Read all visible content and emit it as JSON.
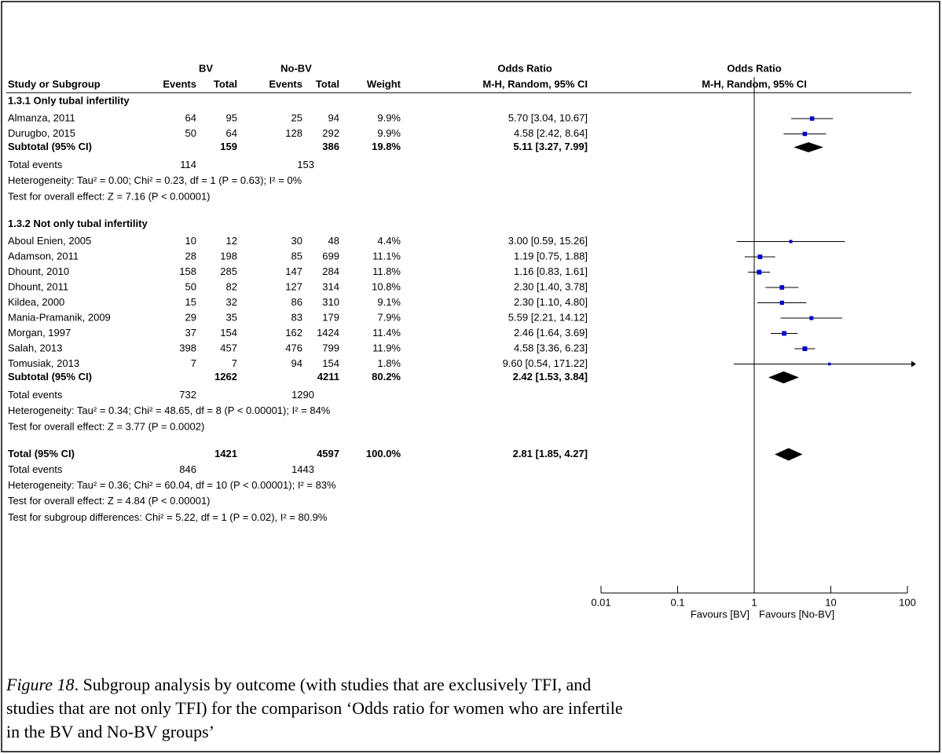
{
  "chart_data": {
    "type": "forest",
    "group_headers": {
      "bv": "BV",
      "nobv": "No-BV",
      "or_table": "Odds Ratio",
      "or_plot": "Odds Ratio"
    },
    "columns": [
      "Study or Subgroup",
      "Events",
      "Total",
      "Events",
      "Total",
      "Weight",
      "M-H, Random, 95% CI"
    ],
    "plot_header": "M-H, Random, 95% CI",
    "color": "#0000cc",
    "subgroups": [
      {
        "title": "1.3.1 Only tubal infertility",
        "studies": [
          {
            "name": "Almanza, 2011",
            "bv_events": 64,
            "bv_total": 95,
            "nobv_events": 25,
            "nobv_total": 94,
            "weight": 9.9,
            "weight_label": "9.9%",
            "or": 5.7,
            "ci": [
              3.04,
              10.67
            ],
            "ci_label": "5.70 [3.04, 10.67]"
          },
          {
            "name": "Durugbo, 2015",
            "bv_events": 50,
            "bv_total": 64,
            "nobv_events": 128,
            "nobv_total": 292,
            "weight": 9.9,
            "weight_label": "9.9%",
            "or": 4.58,
            "ci": [
              2.42,
              8.64
            ],
            "ci_label": "4.58 [2.42, 8.64]"
          }
        ],
        "subtotal": {
          "name": "Subtotal (95% CI)",
          "bv_total": 159,
          "nobv_total": 386,
          "weight": 19.8,
          "weight_label": "19.8%",
          "or": 5.11,
          "ci": [
            3.27,
            7.99
          ],
          "ci_label": "5.11 [3.27, 7.99]"
        },
        "total_events": {
          "name": "Total events",
          "bv": 114,
          "nobv": 153
        },
        "heterogeneity": "Heterogeneity: Tau² = 0.00; Chi² = 0.23, df = 1 (P = 0.63); I² = 0%",
        "overall": "Test for overall effect: Z = 7.16 (P < 0.00001)"
      },
      {
        "title": "1.3.2 Not only tubal infertility",
        "studies": [
          {
            "name": "Aboul Enien, 2005",
            "bv_events": 10,
            "bv_total": 12,
            "nobv_events": 30,
            "nobv_total": 48,
            "weight": 4.4,
            "weight_label": "4.4%",
            "or": 3,
            "ci": [
              0.59,
              15.26
            ],
            "ci_label": "3.00 [0.59, 15.26]"
          },
          {
            "name": "Adamson, 2011",
            "bv_events": 28,
            "bv_total": 198,
            "nobv_events": 85,
            "nobv_total": 699,
            "weight": 11.1,
            "weight_label": "11.1%",
            "or": 1.19,
            "ci": [
              0.75,
              1.88
            ],
            "ci_label": "1.19 [0.75, 1.88]"
          },
          {
            "name": "Dhount, 2010",
            "bv_events": 158,
            "bv_total": 285,
            "nobv_events": 147,
            "nobv_total": 284,
            "weight": 11.8,
            "weight_label": "11.8%",
            "or": 1.16,
            "ci": [
              0.83,
              1.61
            ],
            "ci_label": "1.16 [0.83, 1.61]"
          },
          {
            "name": "Dhount, 2011",
            "bv_events": 50,
            "bv_total": 82,
            "nobv_events": 127,
            "nobv_total": 314,
            "weight": 10.8,
            "weight_label": "10.8%",
            "or": 2.3,
            "ci": [
              1.4,
              3.78
            ],
            "ci_label": "2.30 [1.40, 3.78]"
          },
          {
            "name": "Kildea, 2000",
            "bv_events": 15,
            "bv_total": 32,
            "nobv_events": 86,
            "nobv_total": 310,
            "weight": 9.1,
            "weight_label": "9.1%",
            "or": 2.3,
            "ci": [
              1.1,
              4.8
            ],
            "ci_label": "2.30 [1.10, 4.80]"
          },
          {
            "name": "Mania-Pramanik, 2009",
            "bv_events": 29,
            "bv_total": 35,
            "nobv_events": 83,
            "nobv_total": 179,
            "weight": 7.9,
            "weight_label": "7.9%",
            "or": 5.59,
            "ci": [
              2.21,
              14.12
            ],
            "ci_label": "5.59 [2.21, 14.12]"
          },
          {
            "name": "Morgan, 1997",
            "bv_events": 37,
            "bv_total": 154,
            "nobv_events": 162,
            "nobv_total": 1424,
            "weight": 11.4,
            "weight_label": "11.4%",
            "or": 2.46,
            "ci": [
              1.64,
              3.69
            ],
            "ci_label": "2.46 [1.64, 3.69]"
          },
          {
            "name": "Salah, 2013",
            "bv_events": 398,
            "bv_total": 457,
            "nobv_events": 476,
            "nobv_total": 799,
            "weight": 11.9,
            "weight_label": "11.9%",
            "or": 4.58,
            "ci": [
              3.36,
              6.23
            ],
            "ci_label": "4.58 [3.36, 6.23]"
          },
          {
            "name": "Tomusiak, 2013",
            "bv_events": 7,
            "bv_total": 7,
            "nobv_events": 94,
            "nobv_total": 154,
            "weight": 1.8,
            "weight_label": "1.8%",
            "or": 9.6,
            "ci": [
              0.54,
              171.22
            ],
            "ci_label": "9.60 [0.54, 171.22]"
          }
        ],
        "subtotal": {
          "name": "Subtotal (95% CI)",
          "bv_total": 1262,
          "nobv_total": 4211,
          "weight": 80.2,
          "weight_label": "80.2%",
          "or": 2.42,
          "ci": [
            1.53,
            3.84
          ],
          "ci_label": "2.42 [1.53, 3.84]"
        },
        "total_events": {
          "name": "Total events",
          "bv": 732,
          "nobv": 1290
        },
        "heterogeneity": "Heterogeneity: Tau² = 0.34; Chi² = 48.65, df = 8 (P < 0.00001); I² = 84%",
        "overall": "Test for overall effect: Z = 3.77 (P = 0.0002)"
      }
    ],
    "total": {
      "name": "Total (95% CI)",
      "bv_total": 1421,
      "nobv_total": 4597,
      "weight": 100,
      "weight_label": "100.0%",
      "or": 2.81,
      "ci": [
        1.85,
        4.27
      ],
      "ci_label": "2.81 [1.85, 4.27]"
    },
    "total_events": {
      "name": "Total events",
      "bv": 846,
      "nobv": 1443
    },
    "heterogeneity": "Heterogeneity: Tau² = 0.36; Chi² = 60.04, df = 10 (P < 0.00001); I² = 83%",
    "overall": "Test for overall effect: Z = 4.84 (P < 0.00001)",
    "subgroup_differences": "Test for subgroup differences: Chi² = 5.22, df = 1 (P = 0.02), I² = 80.9%",
    "log_x": true,
    "xlim": [
      0.01,
      100
    ],
    "xticks": [
      0.01,
      0.1,
      1,
      10,
      100
    ],
    "xlabel_left": "Favours [BV]",
    "xlabel_right": "Favours [No-BV]"
  },
  "caption": {
    "label": "Figure 18",
    "lines": [
      ". Subgroup analysis by outcome (with studies that are exclusively TFI, and",
      "studies that are not only TFI) for the comparison ‘Odds ratio for women who are infertile",
      "in the BV and No-BV groups’"
    ]
  }
}
